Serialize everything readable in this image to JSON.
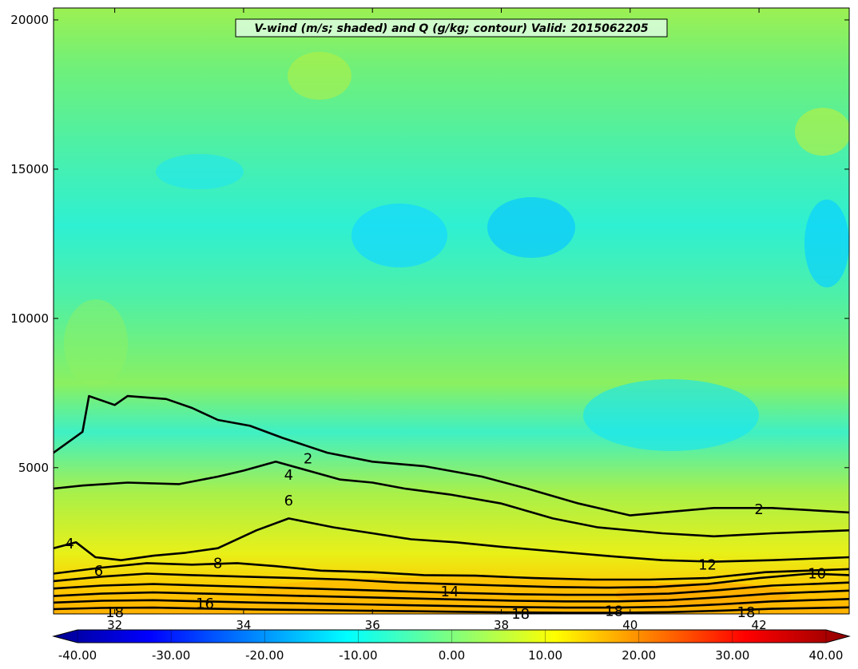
{
  "chart_data": {
    "type": "heatmap",
    "title": "V-wind (m/s; shaded) and Q (g/kg; contour) Valid: 2015062205",
    "xlabel": "",
    "ylabel": "",
    "xlim": [
      31.05,
      43.4
    ],
    "ylim": [
      100,
      20400
    ],
    "x_ticks": [
      "32",
      "34",
      "36",
      "38",
      "40",
      "42"
    ],
    "y_ticks": [
      "5000",
      "10000",
      "15000",
      "20000"
    ],
    "colorbar": {
      "range": [
        -40,
        40
      ],
      "extend": "both",
      "tick_labels": [
        "-40.00",
        "-30.00",
        "-20.00",
        "-10.00",
        "0.00",
        "10.00",
        "20.00",
        "30.00",
        "40.00"
      ]
    },
    "shaded_field": {
      "name": "V-wind (m/s)",
      "summary_rows": [
        {
          "height": 20000,
          "value": 3
        },
        {
          "height": 16000,
          "value": 0
        },
        {
          "height": 12500,
          "value": -8
        },
        {
          "height": 10000,
          "value": -4
        },
        {
          "height": 7000,
          "value": 1
        },
        {
          "height": 5000,
          "value": -3
        },
        {
          "height": 3000,
          "value": 6
        },
        {
          "height": 1500,
          "value": 12
        },
        {
          "height": 500,
          "value": 17
        }
      ]
    },
    "contours": {
      "name": "Q (g/kg)",
      "levels": [
        2,
        4,
        6,
        8,
        10,
        12,
        14,
        16,
        18
      ],
      "lines": [
        {
          "level": 2,
          "label": "2",
          "points": [
            [
              31.05,
              5500
            ],
            [
              31.5,
              6200
            ],
            [
              31.6,
              7400
            ],
            [
              32.0,
              7100
            ],
            [
              32.2,
              7400
            ],
            [
              32.8,
              7300
            ],
            [
              33.2,
              7000
            ],
            [
              33.6,
              6600
            ],
            [
              34.1,
              6400
            ],
            [
              34.6,
              6000
            ],
            [
              35.3,
              5500
            ],
            [
              36.0,
              5200
            ],
            [
              36.8,
              5050
            ],
            [
              37.7,
              4700
            ],
            [
              38.4,
              4300
            ],
            [
              39.2,
              3800
            ],
            [
              40.0,
              3400
            ],
            [
              40.5,
              3500
            ],
            [
              41.3,
              3650
            ],
            [
              42.2,
              3650
            ],
            [
              43.4,
              3500
            ]
          ]
        },
        {
          "level": 4,
          "label": "4",
          "points": [
            [
              31.05,
              4300
            ],
            [
              31.5,
              4400
            ],
            [
              32.2,
              4500
            ],
            [
              33.0,
              4450
            ],
            [
              33.6,
              4700
            ],
            [
              34.0,
              4900
            ],
            [
              34.5,
              5200
            ],
            [
              35.0,
              4900
            ],
            [
              35.5,
              4600
            ],
            [
              36.0,
              4500
            ],
            [
              36.5,
              4300
            ],
            [
              37.2,
              4100
            ],
            [
              38.0,
              3800
            ],
            [
              38.8,
              3300
            ],
            [
              39.5,
              3000
            ],
            [
              40.5,
              2800
            ],
            [
              41.3,
              2700
            ],
            [
              42.2,
              2800
            ],
            [
              43.4,
              2900
            ]
          ]
        },
        {
          "level": 6,
          "label": "6",
          "points": [
            [
              31.05,
              2300
            ],
            [
              31.4,
              2500
            ],
            [
              31.7,
              2000
            ],
            [
              32.1,
              1900
            ],
            [
              32.6,
              2050
            ],
            [
              33.1,
              2150
            ],
            [
              33.6,
              2300
            ],
            [
              34.2,
              2900
            ],
            [
              34.7,
              3300
            ],
            [
              35.4,
              3000
            ],
            [
              36.0,
              2800
            ],
            [
              36.6,
              2600
            ],
            [
              37.3,
              2500
            ],
            [
              38.0,
              2350
            ],
            [
              38.8,
              2200
            ],
            [
              39.6,
              2050
            ],
            [
              40.5,
              1900
            ],
            [
              41.3,
              1850
            ],
            [
              42.2,
              1900
            ],
            [
              43.4,
              2000
            ]
          ]
        },
        {
          "level": 8,
          "label": "8",
          "points": [
            [
              31.05,
              1450
            ],
            [
              31.8,
              1650
            ],
            [
              32.5,
              1800
            ],
            [
              33.2,
              1750
            ],
            [
              33.9,
              1800
            ],
            [
              34.5,
              1700
            ],
            [
              35.2,
              1550
            ],
            [
              36.0,
              1500
            ],
            [
              36.8,
              1400
            ],
            [
              37.6,
              1380
            ],
            [
              38.5,
              1300
            ],
            [
              39.4,
              1250
            ],
            [
              40.3,
              1250
            ],
            [
              41.2,
              1300
            ],
            [
              42.1,
              1500
            ],
            [
              43.4,
              1600
            ]
          ]
        },
        {
          "level": 10,
          "label": "10",
          "points": [
            [
              31.05,
              1200
            ],
            [
              31.8,
              1350
            ],
            [
              32.5,
              1450
            ],
            [
              33.2,
              1400
            ],
            [
              34.0,
              1350
            ],
            [
              34.8,
              1300
            ],
            [
              35.6,
              1250
            ],
            [
              36.4,
              1150
            ],
            [
              37.2,
              1100
            ],
            [
              38.0,
              1050
            ],
            [
              38.8,
              1000
            ],
            [
              39.6,
              980
            ],
            [
              40.4,
              1000
            ],
            [
              41.2,
              1100
            ],
            [
              42.0,
              1300
            ],
            [
              42.8,
              1450
            ],
            [
              43.4,
              1400
            ]
          ]
        },
        {
          "level": 12,
          "label": "12",
          "points": [
            [
              31.05,
              950
            ],
            [
              31.8,
              1050
            ],
            [
              32.6,
              1100
            ],
            [
              33.4,
              1050
            ],
            [
              34.2,
              1000
            ],
            [
              35.0,
              950
            ],
            [
              35.8,
              900
            ],
            [
              36.6,
              850
            ],
            [
              37.4,
              800
            ],
            [
              38.2,
              760
            ],
            [
              39.0,
              740
            ],
            [
              39.8,
              740
            ],
            [
              40.6,
              780
            ],
            [
              41.4,
              900
            ],
            [
              42.2,
              1050
            ],
            [
              43.4,
              1150
            ]
          ]
        },
        {
          "level": 14,
          "label": "14",
          "points": [
            [
              31.05,
              700
            ],
            [
              31.8,
              780
            ],
            [
              32.6,
              820
            ],
            [
              33.4,
              780
            ],
            [
              34.2,
              740
            ],
            [
              35.0,
              700
            ],
            [
              35.8,
              660
            ],
            [
              36.6,
              620
            ],
            [
              37.4,
              580
            ],
            [
              38.2,
              540
            ],
            [
              39.0,
              520
            ],
            [
              39.8,
              520
            ],
            [
              40.6,
              560
            ],
            [
              41.4,
              660
            ],
            [
              42.2,
              780
            ],
            [
              43.4,
              880
            ]
          ]
        },
        {
          "level": 16,
          "label": "16",
          "points": [
            [
              31.05,
              480
            ],
            [
              31.8,
              540
            ],
            [
              32.6,
              560
            ],
            [
              33.4,
              520
            ],
            [
              34.2,
              480
            ],
            [
              35.0,
              450
            ],
            [
              35.8,
              420
            ],
            [
              36.6,
              390
            ],
            [
              37.4,
              360
            ],
            [
              38.2,
              330
            ],
            [
              39.0,
              310
            ],
            [
              39.8,
              310
            ],
            [
              40.6,
              340
            ],
            [
              41.4,
              420
            ],
            [
              42.2,
              520
            ],
            [
              43.4,
              600
            ]
          ]
        },
        {
          "level": 18,
          "label": "18",
          "points": [
            [
              31.05,
              260
            ],
            [
              31.8,
              300
            ],
            [
              32.6,
              310
            ],
            [
              33.4,
              280
            ],
            [
              34.2,
              250
            ],
            [
              35.0,
              230
            ],
            [
              35.8,
              210
            ],
            [
              36.6,
              190
            ],
            [
              37.4,
              170
            ],
            [
              38.2,
              150
            ],
            [
              39.0,
              140
            ],
            [
              39.8,
              140
            ],
            [
              40.6,
              160
            ],
            [
              41.4,
              210
            ],
            [
              42.2,
              270
            ],
            [
              43.4,
              320
            ]
          ]
        }
      ],
      "inline_labels": [
        {
          "text": "2",
          "x": 35.0,
          "y": 5300
        },
        {
          "text": "2",
          "x": 42.0,
          "y": 3600
        },
        {
          "text": "4",
          "x": 34.7,
          "y": 4750
        },
        {
          "text": "4",
          "x": 31.3,
          "y": 2450
        },
        {
          "text": "6",
          "x": 34.7,
          "y": 3900
        },
        {
          "text": "6",
          "x": 31.75,
          "y": 1550
        },
        {
          "text": "8",
          "x": 33.6,
          "y": 1800
        },
        {
          "text": "12",
          "x": 41.2,
          "y": 1750
        },
        {
          "text": "10",
          "x": 42.9,
          "y": 1450
        },
        {
          "text": "14",
          "x": 37.2,
          "y": 850
        },
        {
          "text": "16",
          "x": 33.4,
          "y": 450
        },
        {
          "text": "18",
          "x": 32.0,
          "y": 150
        },
        {
          "text": "18",
          "x": 38.3,
          "y": 100
        },
        {
          "text": "18",
          "x": 39.75,
          "y": 200
        },
        {
          "text": "18",
          "x": 41.8,
          "y": 150
        }
      ]
    }
  }
}
